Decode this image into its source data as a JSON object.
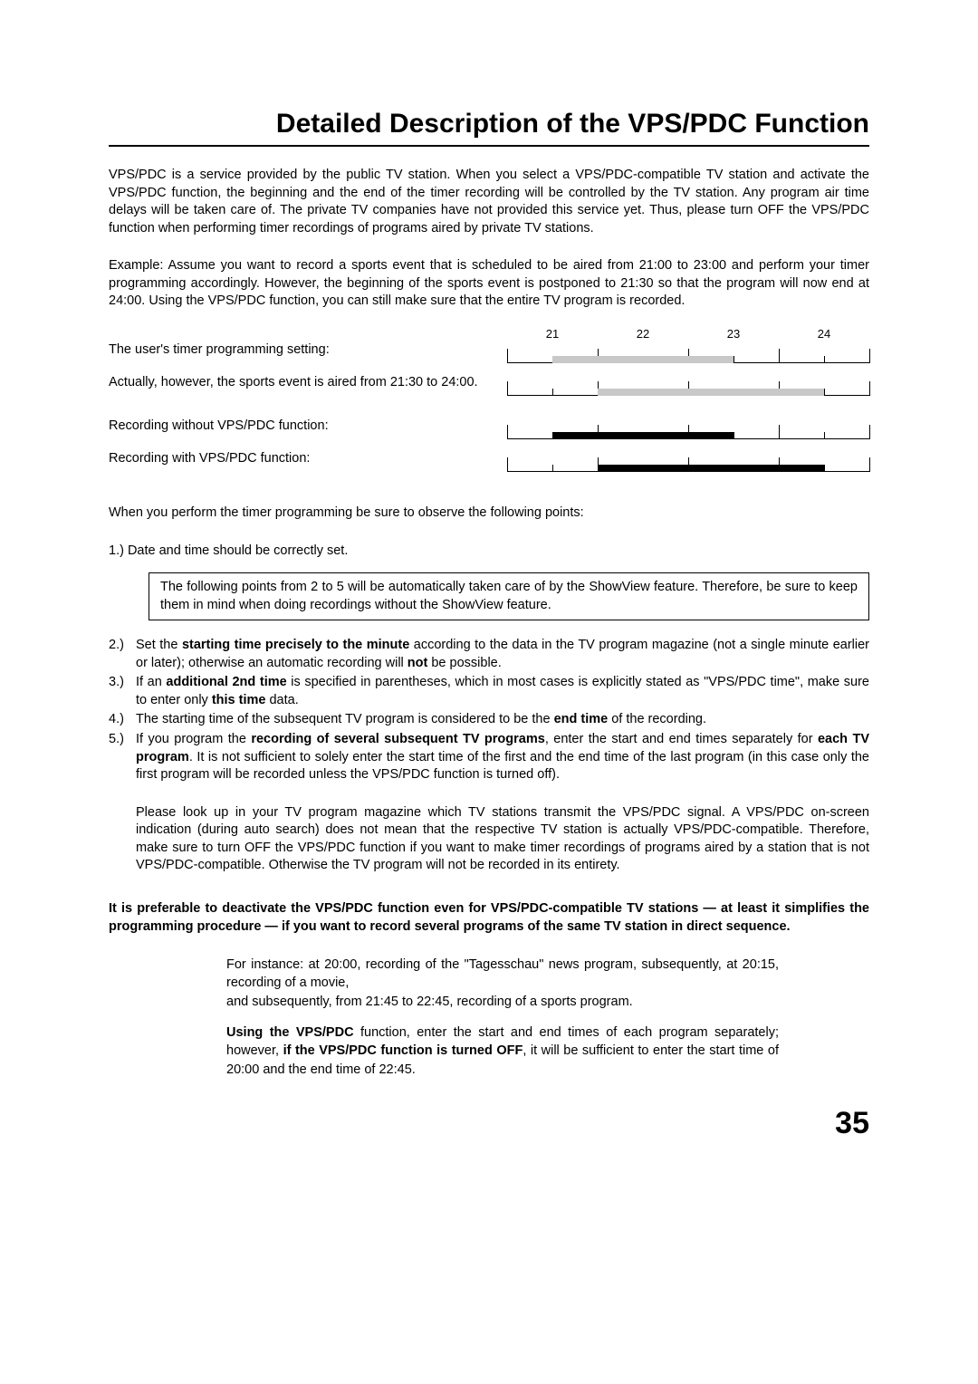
{
  "title": "Detailed Description of the VPS/PDC Function",
  "intro": "VPS/PDC is a service provided by the public TV station. When you select a VPS/PDC-compatible TV station and activate the VPS/PDC function, the beginning and the end of the timer recording will be controlled by the TV station. Any program air time delays will be taken care of. The private TV companies have not provided this service yet. Thus, please turn OFF the VPS/PDC function when performing timer recordings of programs aired by private TV stations.",
  "example": "Example: Assume you want to record a sports event that is scheduled to be aired from 21:00 to 23:00 and perform your timer programming accordingly. However, the beginning of the sports event is postponed to 21:30 so that the program will now end at 24:00. Using the VPS/PDC function, you can still make sure that the entire TV program is recorded.",
  "timeline": {
    "axis_labels": [
      "21",
      "22",
      "23",
      "24"
    ],
    "axis_positions_pct": [
      12.5,
      37.5,
      62.5,
      87.5
    ],
    "tick_positions_pct": [
      0,
      12.5,
      25,
      37.5,
      50,
      62.5,
      75,
      87.5,
      100
    ],
    "major_tick_positions_pct": [
      0,
      25,
      50,
      75,
      100
    ],
    "rows": [
      {
        "label": "The user's timer programming setting:",
        "label_height": 28,
        "bar": {
          "start_pct": 12.5,
          "end_pct": 62.5,
          "style": "gray"
        }
      },
      {
        "label": "Actually, however, the sports event is aired from 21:30 to 24:00.",
        "label_height": 40,
        "bar": {
          "start_pct": 25,
          "end_pct": 87.5,
          "style": "gray"
        }
      },
      {
        "label": "Recording without VPS/PDC function:",
        "label_height": 28,
        "bar": {
          "start_pct": 12.5,
          "end_pct": 62.5,
          "style": "black"
        }
      },
      {
        "label": "Recording with VPS/PDC function:",
        "label_height": 28,
        "bar": {
          "start_pct": 25,
          "end_pct": 87.5,
          "style": "black"
        }
      }
    ],
    "bar_gray_color": "#c8c8c8",
    "bar_black_color": "#000000"
  },
  "observe": "When you perform the timer programming be sure to observe the following points:",
  "point1_num": "1.)",
  "point1_text": "Date and time should be correctly set.",
  "boxed": "The following points from 2 to 5 will be automatically taken care of by the ShowView feature. Therefore, be sure to keep them in mind when doing recordings without the ShowView feature.",
  "points": [
    {
      "num": "2.)",
      "pre": "Set the ",
      "b1": "starting time precisely to the minute",
      "mid1": " according to the data in the TV program magazine (not a single minute earlier or later); otherwise an automatic recording will ",
      "b2": "not",
      "post": " be possible."
    },
    {
      "num": "3.)",
      "pre": "If an ",
      "b1": "additional 2nd time",
      "mid1": " is specified in parentheses, which in most cases is explicitly stated as \"VPS/PDC time\", make sure to enter only ",
      "b2": "this time",
      "post": " data."
    },
    {
      "num": "4.)",
      "pre": "The starting time of the subsequent TV program is considered to be the ",
      "b1": "end time",
      "mid1": "",
      "b2": "",
      "post": " of the recording."
    },
    {
      "num": "5.)",
      "pre": "If you program the ",
      "b1": "recording of several subsequent TV programs",
      "mid1": ", enter the start and end times separately for ",
      "b2": "each TV program",
      "post": ". It is not sufficient to solely enter the start time of the first and the end time of the last program (in this case only the first program will be recorded unless the VPS/PDC function is turned off)."
    }
  ],
  "lookup": "Please look up in your TV program magazine which TV stations transmit the VPS/PDC signal. A VPS/PDC on-screen indication (during auto search) does not mean that the respective TV station is actually VPS/PDC-compatible. Therefore, make sure to turn OFF the VPS/PDC function if you want to make timer recordings of programs aired by a station that is not VPS/PDC-compatible. Otherwise the TV program will not be recorded in its entirety.",
  "preferable": "It is preferable to deactivate the VPS/PDC function even for VPS/PDC-compatible TV stations — at least it simplifies the programming procedure — if you want to record several programs of the same TV station in direct sequence.",
  "eg1": "For instance: at 20:00, recording of the \"Tagesschau\" news program, subsequently, at 20:15, recording of a movie,",
  "eg2": "and subsequently, from 21:45 to 22:45, recording of a sports program.",
  "eg3_b1": "Using the VPS/PDC",
  "eg3_m1": " function, enter the start and end times of each program separately; however, ",
  "eg3_b2": "if the VPS/PDC function is turned OFF",
  "eg3_m2": ", it will be sufficient to enter the start time of 20:00 and the end time of 22:45.",
  "page_number": "35"
}
